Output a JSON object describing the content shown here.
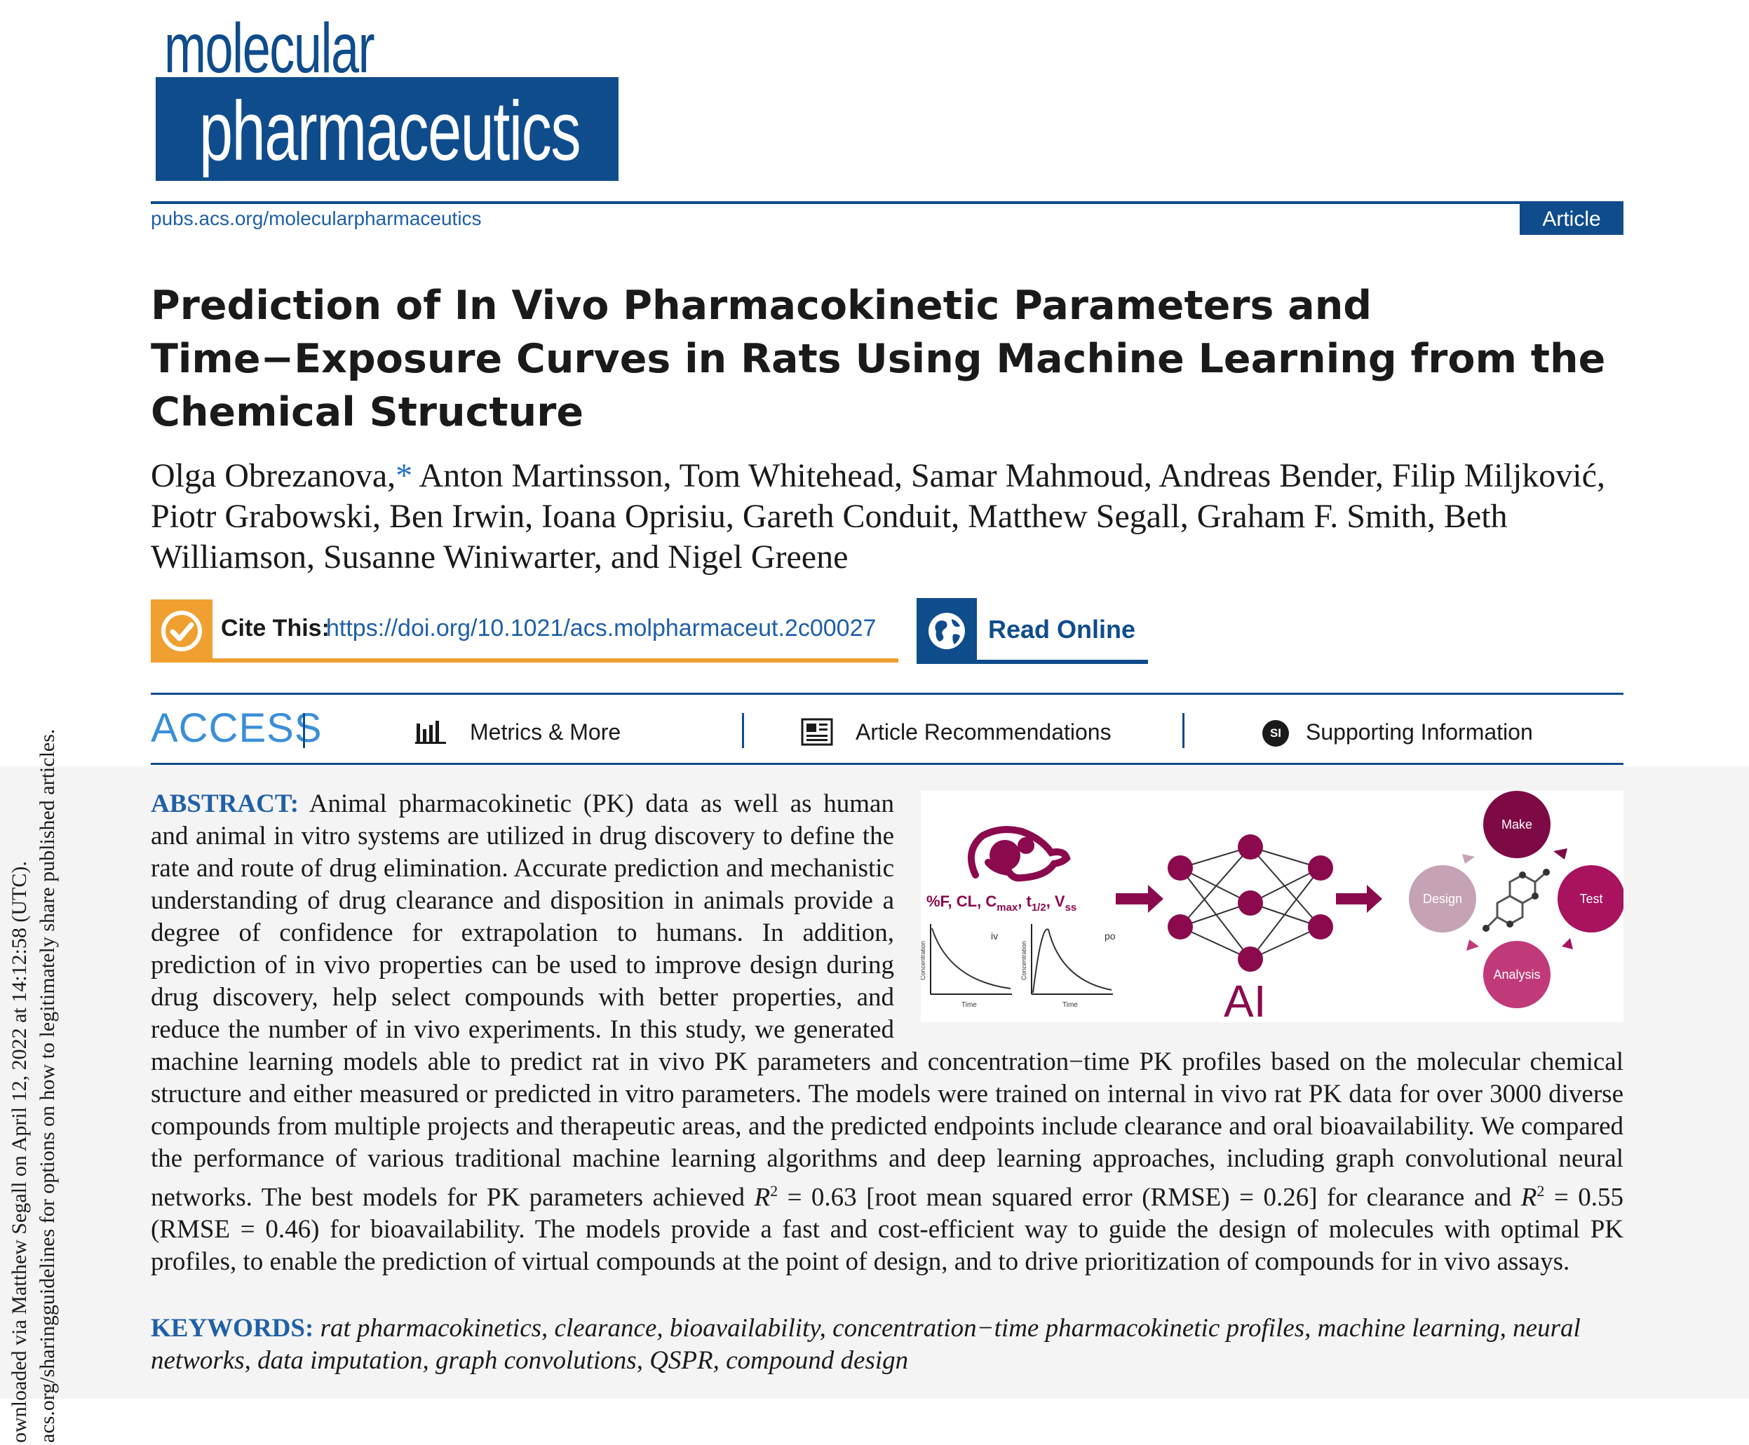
{
  "journal": {
    "logo_line1": "molecular",
    "logo_line2": "pharmaceutics",
    "url": "pubs.acs.org/molecularpharmaceutics",
    "article_type": "Article"
  },
  "title": "Prediction of In Vivo Pharmacokinetic Parameters and Time−Exposure Curves in Rats Using Machine Learning from the Chemical Structure",
  "authors": {
    "first": "Olga Obrezanova,",
    "corresponding_mark": "*",
    "rest": " Anton Martinsson, Tom Whitehead, Samar Mahmoud, Andreas Bender, Filip Miljković, Piotr Grabowski, Ben Irwin, Ioana Oprisiu, Gareth Conduit, Matthew Segall, Graham F. Smith, Beth Williamson, Susanne Winiwarter, and Nigel Greene"
  },
  "cite": {
    "label": "Cite This:",
    "doi": "https://doi.org/10.1021/acs.molpharmaceut.2c00027"
  },
  "read_online": "Read Online",
  "access": {
    "label": "ACCESS",
    "metrics": "Metrics & More",
    "recommendations": "Article Recommendations",
    "si_badge": "SI",
    "supporting": "Supporting Information"
  },
  "toc_graphic": {
    "params_label": "%F, CL, C",
    "params_sub1": "max",
    "params_mid": ", t",
    "params_sub2": "1/2",
    "params_mid2": ", V",
    "params_sub3": "ss",
    "plot1_route": "iv",
    "plot2_route": "po",
    "axis_y": "Concentration",
    "axis_x": "Time",
    "ai_label": "AI",
    "cycle": [
      "Make",
      "Test",
      "Analysis",
      "Design"
    ]
  },
  "abstract": {
    "label": "ABSTRACT:",
    "text": "Animal pharmacokinetic (PK) data as well as human and animal in vitro systems are utilized in drug discovery to define the rate and route of drug elimination. Accurate prediction and mechanistic understanding of drug clearance and disposition in animals provide a degree of confidence for extrapolation to humans. In addition, prediction of in vivo properties can be used to improve design during drug discovery, help select compounds with better properties, and reduce the number of in vivo experiments. In this study, we generated machine learning models able to predict rat in vivo PK parameters and concentration−time PK profiles based on the molecular chemical structure and either measured or predicted in vitro parameters. The models were trained on internal in vivo rat PK data for over 3000 diverse compounds from multiple projects and therapeutic areas, and the predicted endpoints include clearance and oral bioavailability. We compared the performance of various traditional machine learning algorithms and deep learning approaches, including graph convolutional neural networks. The best models for PK parameters achieved ",
    "r2_a_var": "R",
    "r2_a_sup": "2",
    "r2_a_text": " = 0.63 [root mean squared error (RMSE) = 0.26] for clearance and ",
    "r2_b_var": "R",
    "r2_b_sup": "2",
    "r2_b_text": " = 0.55 (RMSE = 0.46) for bioavailability. The models provide a fast and cost-efficient way to guide the design of molecules with optimal PK profiles, to enable the prediction of virtual compounds at the point of design, and to drive prioritization of compounds for in vivo assays."
  },
  "keywords": {
    "label": "KEYWORDS:",
    "text": "rat pharmacokinetics, clearance, bioavailability, concentration−time pharmacokinetic profiles, machine learning, neural networks, data imputation, graph convolutions, QSPR, compound design"
  },
  "side_note": {
    "line1": "ownloaded via Matthew Segall on April 12, 2022 at 14:12:58 (UTC).",
    "line2": "acs.org/sharingguidelines for options on how to legitimately share published articles."
  },
  "colors": {
    "brand_blue": "#0f4c8c",
    "cite_orange": "#f0a030",
    "toc_purple": "#8b0a4e"
  }
}
